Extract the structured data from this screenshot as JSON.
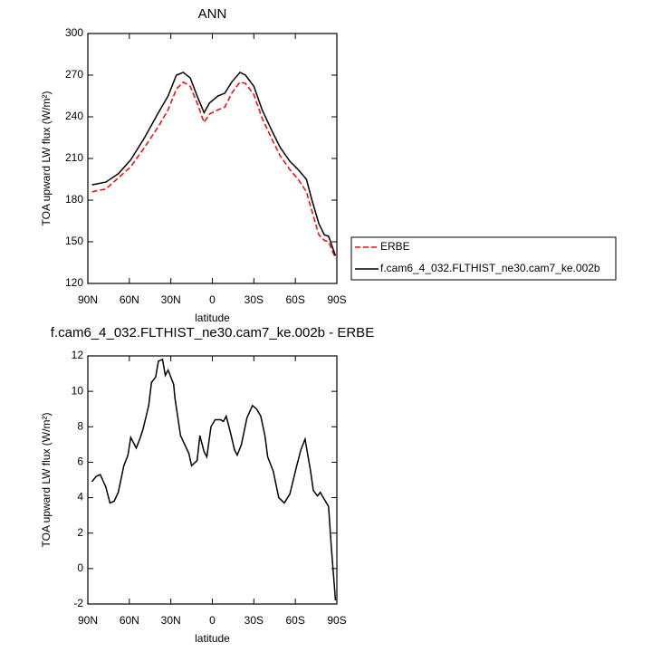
{
  "chart_data": [
    {
      "type": "line",
      "title": "ANN",
      "xlabel": "latitude",
      "ylabel": "TOA upward LW flux (W/m²)",
      "x": [
        87,
        77,
        68,
        59,
        49,
        39,
        32,
        26,
        21,
        16,
        11,
        6,
        2,
        -4,
        -9,
        -14,
        -20,
        -24,
        -30,
        -36,
        -43,
        -49,
        -56,
        -62,
        -68,
        -72,
        -77,
        -81,
        -84,
        -89
      ],
      "series": [
        {
          "name": "ERBE",
          "color": "#ff0000",
          "style": "dashed",
          "values": [
            186,
            188,
            196,
            204,
            218,
            233,
            245,
            260,
            265,
            262,
            250,
            236,
            242,
            245,
            247,
            257,
            265,
            264,
            256,
            239,
            224,
            212,
            202,
            195,
            186,
            172,
            155,
            151,
            150,
            138
          ]
        },
        {
          "name": "f.cam6_4_032.FLTHIST_ne30.cam7_ke.002b",
          "color": "#000000",
          "style": "solid",
          "values": [
            191,
            193,
            199,
            209,
            225,
            243,
            255,
            270,
            272,
            268,
            255,
            243,
            250,
            255,
            257,
            265,
            272,
            270,
            262,
            245,
            230,
            218,
            208,
            202,
            195,
            180,
            163,
            155,
            154,
            140
          ]
        }
      ],
      "xlim": [
        90,
        -90
      ],
      "xticks": [
        {
          "value": 90,
          "label": "90N"
        },
        {
          "value": 60,
          "label": "60N"
        },
        {
          "value": 30,
          "label": "30N"
        },
        0,
        {
          "value": -30,
          "label": "30S"
        },
        {
          "value": -60,
          "label": "60S"
        },
        {
          "value": -90,
          "label": "90S"
        }
      ],
      "ylim": [
        120,
        300
      ],
      "yticks": [
        120,
        150,
        180,
        210,
        240,
        270,
        300
      ],
      "legend": "outside-right"
    },
    {
      "type": "line",
      "title": "f.cam6_4_032.FLTHIST_ne30.cam7_ke.002b - ERBE",
      "xlabel": "latitude",
      "ylabel": "TOA upward LW flux (W/m²)",
      "x": [
        87,
        84,
        81,
        77,
        74,
        71,
        68,
        64,
        61,
        59,
        55,
        52,
        50,
        46,
        44,
        41,
        39,
        36,
        34,
        32,
        28,
        27,
        23,
        20,
        17,
        15,
        11,
        9,
        6,
        4,
        1,
        -2,
        -6,
        -8,
        -10,
        -13,
        -16,
        -18,
        -21,
        -25,
        -29,
        -32,
        -35,
        -38,
        -40,
        -44,
        -48,
        -52,
        -56,
        -61,
        -64,
        -67,
        -71,
        -73,
        -76,
        -78,
        -81,
        -84,
        -86,
        -89
      ],
      "series": [
        {
          "color": "#000000",
          "style": "solid",
          "values": [
            4.9,
            5.2,
            5.3,
            4.6,
            3.7,
            3.8,
            4.3,
            5.8,
            6.4,
            7.4,
            6.8,
            7.4,
            7.9,
            9.2,
            10.5,
            10.8,
            11.7,
            11.8,
            10.9,
            11.2,
            10.4,
            9.6,
            7.5,
            7.0,
            6.5,
            5.8,
            6.1,
            7.5,
            6.6,
            6.3,
            8.0,
            8.4,
            8.4,
            8.3,
            8.6,
            7.7,
            6.7,
            6.4,
            7.0,
            8.5,
            9.2,
            9.0,
            8.6,
            7.5,
            6.3,
            5.5,
            4.0,
            3.7,
            4.2,
            5.8,
            6.7,
            7.3,
            5.5,
            4.4,
            4.1,
            4.3,
            3.9,
            3.5,
            1.2,
            -1.8
          ]
        }
      ],
      "xlim": [
        90,
        -90
      ],
      "xticks": [
        {
          "value": 90,
          "label": "90N"
        },
        {
          "value": 60,
          "label": "60N"
        },
        {
          "value": 30,
          "label": "30N"
        },
        0,
        {
          "value": -30,
          "label": "30S"
        },
        {
          "value": -60,
          "label": "60S"
        },
        {
          "value": -90,
          "label": "90S"
        }
      ],
      "ylim": [
        -2,
        12
      ],
      "yticks": [
        -2,
        0,
        2,
        4,
        6,
        8,
        10,
        12
      ]
    }
  ]
}
